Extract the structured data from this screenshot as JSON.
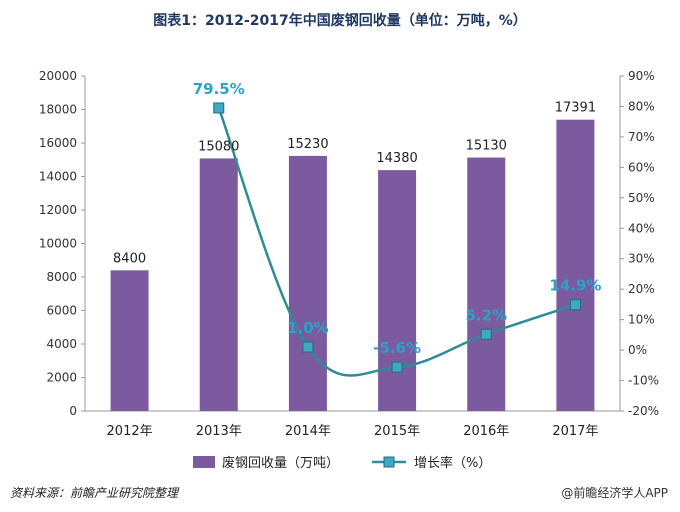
{
  "chart_data": {
    "type": "bar",
    "title": "图表1：2012-2017年中国废钢回收量（单位：万吨，%）",
    "categories": [
      "2012年",
      "2013年",
      "2014年",
      "2015年",
      "2016年",
      "2017年"
    ],
    "series": [
      {
        "name": "废钢回收量（万吨）",
        "type": "bar",
        "axis": "left",
        "values": [
          8400,
          15080,
          15230,
          14380,
          15130,
          17391
        ],
        "labels": [
          "8400",
          "15080",
          "15230",
          "14380",
          "15130",
          "17391"
        ]
      },
      {
        "name": "增长率（%）",
        "type": "line",
        "axis": "right",
        "values": [
          null,
          79.5,
          1.0,
          -5.6,
          5.2,
          14.9
        ],
        "labels": [
          "",
          "79.5%",
          "1.0%",
          "-5.6%",
          "5.2%",
          "14.9%"
        ]
      }
    ],
    "y_left": {
      "ylim": [
        0,
        20000
      ],
      "ticks": [
        "0",
        "2000",
        "4000",
        "6000",
        "8000",
        "10000",
        "12000",
        "14000",
        "16000",
        "18000",
        "20000"
      ]
    },
    "y_right": {
      "ylim": [
        -20,
        90
      ],
      "ticks": [
        "-20%",
        "-10%",
        "0%",
        "10%",
        "20%",
        "30%",
        "40%",
        "50%",
        "60%",
        "70%",
        "80%",
        "90%"
      ]
    },
    "legend": "bottom",
    "grid": false,
    "colors": {
      "bar": "#7b5aa0",
      "line": "#2e8b9a",
      "marker": "#3fa9c4",
      "label": "#2aa3c7"
    }
  },
  "footer": {
    "source": "资料来源：前瞻产业研究院整理",
    "credit": "@前瞻经济学人APP"
  }
}
